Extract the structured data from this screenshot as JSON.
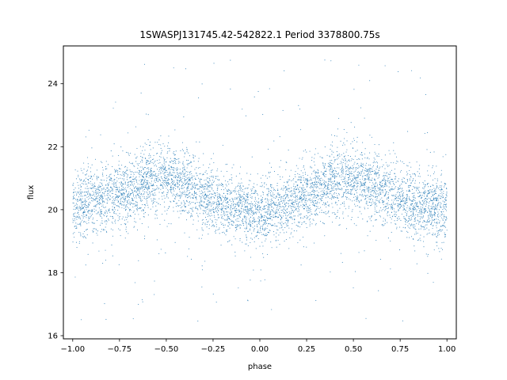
{
  "chart_data": {
    "type": "scatter",
    "title": "1SWASPJ131745.42-542822.1 Period 3378800.75s",
    "xlabel": "phase",
    "ylabel": "flux",
    "xlim": [
      -1.05,
      1.05
    ],
    "ylim": [
      15.9,
      25.2
    ],
    "xticks": [
      -1.0,
      -0.75,
      -0.5,
      -0.25,
      0.0,
      0.25,
      0.5,
      0.75,
      1.0
    ],
    "xtick_labels": [
      "−1.00",
      "−0.75",
      "−0.50",
      "−0.25",
      "0.00",
      "0.25",
      "0.50",
      "0.75",
      "1.00"
    ],
    "yticks": [
      16,
      18,
      20,
      22,
      24
    ],
    "ytick_labels": [
      "16",
      "18",
      "20",
      "22",
      "24"
    ],
    "grid": false,
    "legend": "none",
    "series": [
      {
        "color": "#1f77b4",
        "marker": "point",
        "phase_range": [
          -1.0,
          1.0
        ],
        "typical_flux_range": [
          18.5,
          22.5
        ],
        "outlier_flux_range": [
          16.3,
          24.8
        ],
        "profile": {
          "phase": [
            -1.0,
            -0.9,
            -0.8,
            -0.7,
            -0.6,
            -0.5,
            -0.4,
            -0.3,
            -0.2,
            -0.1,
            0.0,
            0.1,
            0.2,
            0.3,
            0.4,
            0.5,
            0.6,
            0.7,
            0.8,
            0.9,
            1.0
          ],
          "median_flux": [
            20.0,
            20.3,
            20.4,
            20.6,
            20.9,
            21.0,
            20.8,
            20.4,
            20.2,
            20.0,
            19.9,
            20.0,
            20.3,
            20.6,
            20.9,
            21.0,
            20.8,
            20.5,
            20.2,
            20.1,
            20.0
          ]
        }
      }
    ]
  }
}
